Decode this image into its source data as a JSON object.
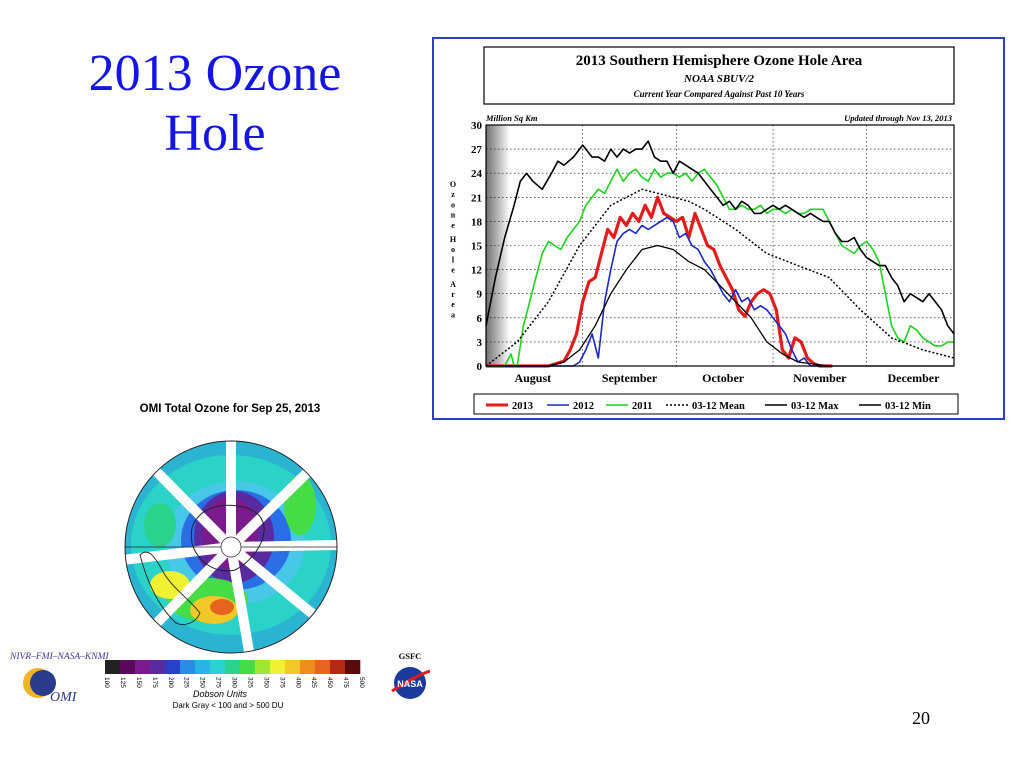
{
  "slide": {
    "title_line1": "2013 Ozone",
    "title_line2": "Hole",
    "page_number": "20"
  },
  "omi": {
    "title": "OMI Total Ozone for Sep 25, 2013",
    "credit": "NIVR–FMI–NASA–KNMI",
    "logo_text": "OMI",
    "gsfc": "GSFC",
    "nasa": "NASA",
    "units": "Dobson Units",
    "note": "Dark Gray < 100 and > 500 DU",
    "scale_ticks": [
      "100",
      "125",
      "150",
      "175",
      "200",
      "225",
      "250",
      "275",
      "300",
      "325",
      "350",
      "375",
      "400",
      "425",
      "450",
      "475",
      "500"
    ],
    "scale_colors": [
      "#222222",
      "#5a0a5a",
      "#7a1a8c",
      "#5a2aa0",
      "#2a40c8",
      "#2a8ce6",
      "#2ab4e6",
      "#2ad2d2",
      "#2ad28c",
      "#46dc46",
      "#a0e632",
      "#f0f032",
      "#f0c828",
      "#f08c1e",
      "#e6641e",
      "#b42814",
      "#5a0a0a"
    ]
  },
  "chart_data": {
    "type": "line",
    "title": "2013 Southern Hemisphere Ozone Hole Area",
    "subtitle": "NOAA SBUV/2",
    "subtitle2": "Current Year Compared Against Past 10 Years",
    "unit_label": "Million Sq Km",
    "updated": "Updated through Nov 13, 2013",
    "ylabel": "Ozone Hole Area",
    "ylim": [
      0,
      30
    ],
    "yticks": [
      0,
      3,
      6,
      9,
      12,
      15,
      18,
      21,
      24,
      27,
      30
    ],
    "xlim": [
      0,
      150
    ],
    "months": [
      {
        "label": "August",
        "x": 15
      },
      {
        "label": "September",
        "x": 46
      },
      {
        "label": "October",
        "x": 76
      },
      {
        "label": "November",
        "x": 107
      },
      {
        "label": "December",
        "x": 137
      }
    ],
    "vgrid_x": [
      31,
      61,
      92,
      122
    ],
    "series": [
      {
        "name": "2013",
        "color": "#e31b1b",
        "width": 3.2,
        "dash": "",
        "x": [
          0,
          5,
          10,
          15,
          20,
          25,
          27,
          29,
          31,
          33,
          35,
          37,
          39,
          41,
          43,
          45,
          47,
          49,
          51,
          53,
          55,
          57,
          59,
          61,
          63,
          65,
          67,
          69,
          71,
          73,
          75,
          77,
          79,
          81,
          83,
          85,
          87,
          89,
          91,
          93,
          95,
          97,
          99,
          101,
          103,
          105,
          107,
          109,
          111
        ],
        "y": [
          0,
          0,
          0,
          0,
          0,
          0.6,
          2,
          4,
          8,
          10.5,
          11,
          14,
          17,
          16,
          18.5,
          17.5,
          19,
          18,
          20,
          18.5,
          21,
          19,
          18.5,
          18,
          18.5,
          16,
          19,
          17,
          15,
          14.5,
          12.5,
          11,
          9.5,
          7,
          6.2,
          8,
          9,
          9.5,
          9,
          7,
          2,
          1,
          3.5,
          3,
          1,
          0.3,
          0,
          0,
          0
        ]
      },
      {
        "name": "2012",
        "color": "#1a28c8",
        "width": 1.6,
        "dash": "",
        "x": [
          0,
          10,
          20,
          25,
          28,
          30,
          32,
          34,
          36,
          38,
          40,
          42,
          44,
          46,
          48,
          50,
          52,
          54,
          56,
          58,
          60,
          62,
          64,
          66,
          68,
          70,
          72,
          74,
          76,
          78,
          80,
          82,
          84,
          86,
          88,
          90,
          92,
          94,
          96,
          98,
          100,
          102,
          104,
          106,
          108,
          110
        ],
        "y": [
          0,
          0,
          0,
          0,
          0,
          0.5,
          2,
          4,
          1,
          8,
          12,
          15.5,
          16.5,
          17,
          16.5,
          17.5,
          17,
          17.5,
          18,
          18.5,
          18,
          16,
          16.5,
          15,
          14.5,
          13,
          12,
          10.5,
          9,
          8,
          9.5,
          8,
          8.5,
          7,
          7.5,
          7,
          6,
          5,
          4,
          2,
          0.5,
          1,
          0,
          0,
          0,
          0
        ]
      },
      {
        "name": "2011",
        "color": "#1ed21e",
        "width": 1.6,
        "dash": "",
        "x": [
          0,
          6,
          8,
          9,
          10,
          12,
          14,
          16,
          18,
          20,
          22,
          24,
          26,
          28,
          30,
          32,
          34,
          36,
          38,
          40,
          42,
          44,
          46,
          48,
          50,
          52,
          54,
          56,
          58,
          60,
          62,
          64,
          66,
          68,
          70,
          72,
          74,
          76,
          78,
          80,
          82,
          84,
          86,
          88,
          90,
          92,
          94,
          96,
          98,
          100,
          102,
          104,
          106,
          108,
          110,
          112,
          114,
          116,
          118,
          120,
          122,
          124,
          126,
          128,
          130,
          132,
          134,
          136,
          138,
          140,
          142,
          144,
          146,
          148,
          150
        ],
        "y": [
          0,
          0,
          1.5,
          0,
          0,
          5,
          8,
          11,
          14,
          15.5,
          15,
          14.5,
          16,
          17,
          18,
          20,
          21,
          22,
          21.5,
          23,
          24.5,
          23,
          24,
          24.5,
          23.5,
          23,
          24.5,
          23.5,
          24,
          24,
          23.5,
          24,
          23,
          24,
          24.5,
          23.5,
          22.5,
          21,
          19.5,
          19.5,
          20,
          19.5,
          19.5,
          20,
          19,
          19.5,
          19.5,
          19,
          19.5,
          19,
          19,
          19.5,
          19.5,
          19.5,
          18,
          16.5,
          15,
          14.5,
          14,
          15,
          15.5,
          14.5,
          13,
          9,
          5,
          3.5,
          3,
          5,
          4.5,
          3.5,
          3,
          2.5,
          2.5,
          3,
          3
        ]
      },
      {
        "name": "03-12 Mean",
        "color": "#000000",
        "width": 1.5,
        "dash": "2,2",
        "x": [
          0,
          10,
          20,
          30,
          40,
          50,
          55,
          60,
          65,
          70,
          80,
          90,
          100,
          110,
          120,
          130,
          140,
          150
        ],
        "y": [
          0,
          3,
          8,
          15,
          20,
          22,
          21.5,
          21,
          20.5,
          19.5,
          17,
          14,
          12.5,
          11,
          7,
          3.5,
          2,
          1
        ]
      },
      {
        "name": "03-12 Max",
        "color": "#000000",
        "width": 1.6,
        "dash": "",
        "x": [
          0,
          3,
          6,
          9,
          11,
          13,
          15,
          18,
          21,
          23,
          25,
          28,
          31,
          34,
          36,
          38,
          40,
          42,
          44,
          46,
          48,
          50,
          52,
          54,
          56,
          58,
          60,
          62,
          64,
          66,
          68,
          70,
          72,
          74,
          76,
          78,
          80,
          82,
          84,
          86,
          88,
          90,
          92,
          94,
          96,
          98,
          100,
          102,
          104,
          106,
          108,
          110,
          112,
          114,
          116,
          118,
          120,
          122,
          124,
          126,
          128,
          130,
          132,
          134,
          136,
          138,
          140,
          142,
          144,
          146,
          148,
          150
        ],
        "y": [
          5,
          11,
          16,
          20,
          23,
          24,
          23,
          22,
          24,
          25.5,
          25,
          26,
          27.5,
          26,
          26,
          25.5,
          27,
          26,
          27,
          26.5,
          27,
          27,
          28,
          26,
          25.5,
          25.5,
          24,
          25.5,
          25,
          24.5,
          24,
          23,
          22,
          21,
          20,
          20.5,
          19.5,
          20.5,
          20,
          19,
          19,
          19.5,
          20,
          19.5,
          20,
          19.5,
          19,
          18.5,
          19,
          18.5,
          18,
          18,
          16.5,
          15.5,
          15.5,
          16,
          14.5,
          13.5,
          13,
          12.5,
          12.5,
          11,
          10,
          8,
          9,
          8.5,
          8,
          9,
          8,
          7,
          5,
          4
        ]
      },
      {
        "name": "03-12 Min",
        "color": "#000000",
        "width": 1.3,
        "dash": "",
        "x": [
          0,
          10,
          20,
          25,
          30,
          35,
          40,
          45,
          50,
          55,
          60,
          65,
          70,
          75,
          80,
          85,
          90,
          95,
          100,
          110,
          120,
          130,
          140,
          150
        ],
        "y": [
          0,
          0,
          0,
          0.5,
          2,
          5,
          9,
          12,
          14.5,
          15,
          14.5,
          13,
          12,
          10,
          8,
          6,
          3,
          1.5,
          0.5,
          0,
          0,
          0,
          0,
          0
        ]
      }
    ],
    "legend": [
      "2013",
      "2012",
      "2011",
      "03-12 Mean",
      "03-12 Max",
      "03-12 Min"
    ]
  }
}
